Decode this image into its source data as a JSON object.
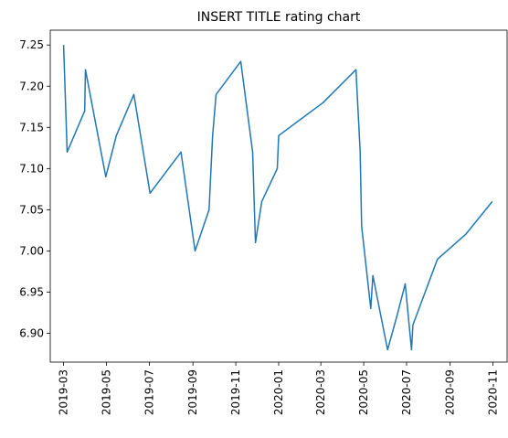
{
  "chart_data": {
    "type": "line",
    "title": "INSERT TITLE rating chart",
    "xlabel": "",
    "ylabel": "",
    "grid": false,
    "legend": "none",
    "line_color": "#1f77b4",
    "xlim": [
      "2019-02-10",
      "2020-11-21"
    ],
    "ylim": [
      6.865,
      7.268
    ],
    "x_ticks": [
      "2019-03",
      "2019-05",
      "2019-07",
      "2019-09",
      "2019-11",
      "2020-01",
      "2020-03",
      "2020-05",
      "2020-07",
      "2020-09",
      "2020-11"
    ],
    "y_ticks": [
      "6.90",
      "6.95",
      "7.00",
      "7.05",
      "7.10",
      "7.15",
      "7.20",
      "7.25"
    ],
    "series": [
      {
        "x": [
          "2019-03-01",
          "2019-03-06",
          "2019-03-31",
          "2019-04-01",
          "2019-04-30",
          "2019-05-15",
          "2019-06-09",
          "2019-07-02",
          "2019-08-15",
          "2019-09-04",
          "2019-09-24",
          "2019-09-29",
          "2019-10-04",
          "2019-11-08",
          "2019-11-25",
          "2019-11-29",
          "2019-12-08",
          "2019-12-30",
          "2020-01-01",
          "2020-03-04",
          "2020-04-20",
          "2020-04-26",
          "2020-04-28",
          "2020-05-11",
          "2020-05-14",
          "2020-06-04",
          "2020-06-17",
          "2020-06-29",
          "2020-07-08",
          "2020-07-10",
          "2020-08-14",
          "2020-09-23",
          "2020-10-31"
        ],
        "values": [
          7.25,
          7.12,
          7.17,
          7.22,
          7.09,
          7.14,
          7.19,
          7.07,
          7.12,
          7.0,
          7.05,
          7.14,
          7.19,
          7.23,
          7.12,
          7.01,
          7.06,
          7.1,
          7.14,
          7.18,
          7.22,
          7.12,
          7.03,
          6.93,
          6.97,
          6.88,
          6.92,
          6.96,
          6.88,
          6.91,
          6.99,
          7.02,
          7.06
        ]
      }
    ]
  }
}
